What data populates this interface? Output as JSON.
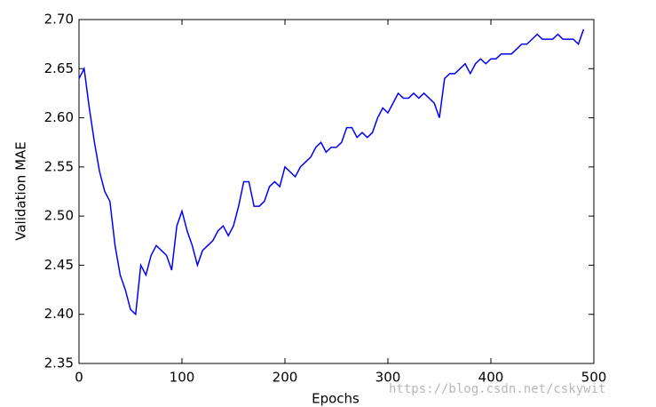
{
  "chart_data": {
    "type": "line",
    "xlabel": "Epochs",
    "ylabel": "Validation MAE",
    "watermark": "https://blog.csdn.net/cskywit",
    "x": [
      0,
      5,
      10,
      15,
      20,
      25,
      30,
      35,
      40,
      45,
      50,
      55,
      60,
      65,
      70,
      75,
      80,
      85,
      90,
      95,
      100,
      105,
      110,
      115,
      120,
      125,
      130,
      135,
      140,
      145,
      150,
      155,
      160,
      165,
      170,
      175,
      180,
      185,
      190,
      195,
      200,
      205,
      210,
      215,
      220,
      225,
      230,
      235,
      240,
      245,
      250,
      255,
      260,
      265,
      270,
      275,
      280,
      285,
      290,
      295,
      300,
      305,
      310,
      315,
      320,
      325,
      330,
      335,
      340,
      345,
      350,
      355,
      360,
      365,
      370,
      375,
      380,
      385,
      390,
      395,
      400,
      405,
      410,
      415,
      420,
      425,
      430,
      435,
      440,
      445,
      450,
      455,
      460,
      465,
      470,
      475,
      480,
      485,
      490
    ],
    "series": [
      {
        "name": "Validation MAE",
        "color": "#0000ff",
        "values": [
          2.64,
          2.65,
          2.61,
          2.575,
          2.545,
          2.525,
          2.515,
          2.47,
          2.44,
          2.425,
          2.405,
          2.4,
          2.45,
          2.44,
          2.46,
          2.47,
          2.465,
          2.46,
          2.445,
          2.49,
          2.505,
          2.485,
          2.47,
          2.45,
          2.465,
          2.47,
          2.475,
          2.485,
          2.49,
          2.48,
          2.49,
          2.51,
          2.535,
          2.535,
          2.51,
          2.51,
          2.515,
          2.53,
          2.535,
          2.53,
          2.55,
          2.545,
          2.54,
          2.55,
          2.555,
          2.56,
          2.57,
          2.575,
          2.565,
          2.57,
          2.57,
          2.575,
          2.59,
          2.59,
          2.58,
          2.585,
          2.58,
          2.585,
          2.6,
          2.61,
          2.605,
          2.615,
          2.625,
          2.62,
          2.62,
          2.625,
          2.62,
          2.625,
          2.62,
          2.615,
          2.6,
          2.64,
          2.645,
          2.645,
          2.65,
          2.655,
          2.645,
          2.655,
          2.66,
          2.655,
          2.66,
          2.66,
          2.665,
          2.665,
          2.665,
          2.67,
          2.675,
          2.675,
          2.68,
          2.685,
          2.68,
          2.68,
          2.68,
          2.685,
          2.68,
          2.68,
          2.68,
          2.675,
          2.69
        ]
      }
    ],
    "xlim": [
      0,
      500
    ],
    "xticks": [
      0,
      100,
      200,
      300,
      400,
      500
    ],
    "ylim": [
      2.35,
      2.7
    ],
    "yticks": [
      2.35,
      {
        "value": 2.4,
        "label": "2.40"
      },
      2.45,
      {
        "value": 2.5,
        "label": "2.50"
      },
      2.55,
      {
        "value": 2.6,
        "label": "2.60"
      },
      2.65,
      {
        "value": 2.7,
        "label": "2.70"
      }
    ],
    "grid": false
  }
}
